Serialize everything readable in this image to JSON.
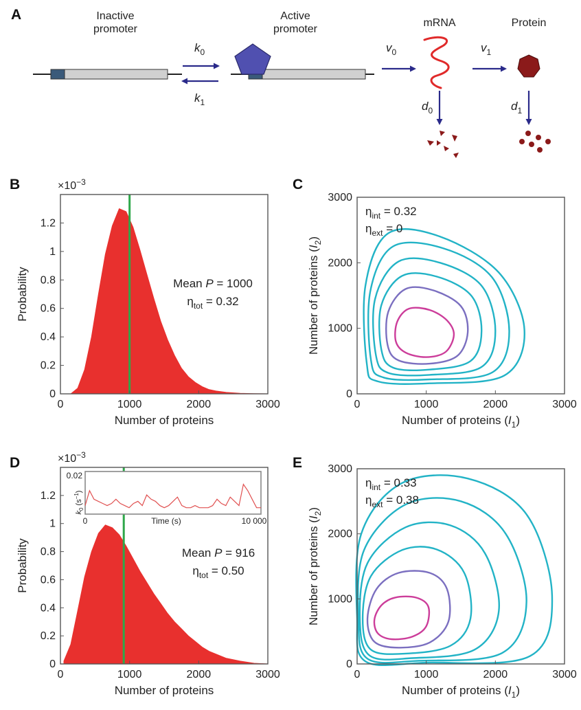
{
  "panel_letters": {
    "a": "A",
    "b": "B",
    "c": "C",
    "d": "D",
    "e": "E"
  },
  "schema": {
    "inactive_label": [
      "Inactive",
      "promoter"
    ],
    "active_label": [
      "Active",
      "promoter"
    ],
    "mrna_label": "mRNA",
    "protein_label": "Protein",
    "rates": {
      "k0": "k",
      "k0_sub": "0",
      "k1": "k",
      "k1_sub": "1",
      "v0": "v",
      "v0_sub": "0",
      "v1": "v",
      "v1_sub": "1",
      "d0": "d",
      "d0_sub": "0",
      "d1": "d",
      "d1_sub": "1"
    },
    "colors": {
      "promoter_fill": "#d0d0d0",
      "promoter_site": "#3a5a7a",
      "activator": "#5050b0",
      "mrna": "#e02a2a",
      "protein": "#8b1a1a",
      "arrow": "#2a2a8a"
    }
  },
  "chart_data": [
    {
      "panel": "B",
      "type": "area",
      "exponent_label": "×10",
      "exponent_power": "−3",
      "xlabel": "Number of proteins",
      "ylabel": "Probability",
      "xlim": [
        0,
        3000
      ],
      "ylim": [
        0,
        1.4
      ],
      "xticks": [
        0,
        1000,
        2000,
        3000
      ],
      "yticks": [
        0,
        0.2,
        0.4,
        0.6,
        0.8,
        1,
        1.2
      ],
      "ytick_labels": [
        "0",
        "0.2",
        "0.4",
        "0.6",
        "0.8",
        "1",
        "1.2"
      ],
      "x": [
        150,
        250,
        350,
        450,
        550,
        650,
        750,
        850,
        950,
        1050,
        1150,
        1250,
        1350,
        1450,
        1550,
        1650,
        1750,
        1850,
        1950,
        2050,
        2150,
        2250,
        2400,
        2600,
        2800,
        3000
      ],
      "y": [
        0.0,
        0.04,
        0.17,
        0.4,
        0.7,
        0.98,
        1.18,
        1.3,
        1.28,
        1.17,
        1.01,
        0.84,
        0.67,
        0.51,
        0.38,
        0.27,
        0.18,
        0.12,
        0.08,
        0.05,
        0.03,
        0.02,
        0.01,
        0.004,
        0.001,
        0.0
      ],
      "mean_line": 1000,
      "annotation": {
        "mean_prefix": "Mean ",
        "mean_var": "P",
        "mean_value": " = 1000",
        "eta": "η",
        "eta_sub": "tot",
        "eta_value": " = 0.32"
      },
      "fill_color": "#e8302e",
      "mean_color": "#2ea84a"
    },
    {
      "panel": "C",
      "type": "contour",
      "xlabel_prefix": "Number of proteins (",
      "xlabel_var": "I",
      "xlabel_sub": "1",
      "xlabel_suffix": ")",
      "ylabel_prefix": "Number of proteins (",
      "ylabel_var": "I",
      "ylabel_sub": "2",
      "ylabel_suffix": ")",
      "xlim": [
        0,
        3000
      ],
      "ylim": [
        0,
        3000
      ],
      "xticks": [
        0,
        1000,
        2000,
        3000
      ],
      "yticks": [
        0,
        1000,
        2000,
        3000
      ],
      "annotation": {
        "eta": "η",
        "int_sub": "int",
        "int_value": " = 0.32",
        "ext_sub": "ext",
        "ext_value": " = 0"
      },
      "contours": [
        {
          "x": [
            750,
            1050,
            1300,
            1400,
            1280,
            1000,
            700,
            560,
            580,
            750
          ],
          "y": [
            1300,
            1280,
            1120,
            900,
            640,
            560,
            630,
            800,
            1100,
            1300
          ],
          "color": "#cc3d9a"
        },
        {
          "x": [
            700,
            1100,
            1500,
            1600,
            1450,
            1050,
            600,
            440,
            450,
            700
          ],
          "y": [
            1600,
            1580,
            1340,
            940,
            580,
            460,
            510,
            750,
            1250,
            1600
          ],
          "color": "#7b6fc0"
        },
        {
          "x": [
            650,
            1150,
            1650,
            1800,
            1640,
            1050,
            520,
            350,
            350,
            650
          ],
          "y": [
            1800,
            1790,
            1500,
            960,
            500,
            370,
            400,
            680,
            1350,
            1800
          ],
          "color": "#22b3c6"
        },
        {
          "x": [
            600,
            1200,
            1800,
            2000,
            1800,
            1050,
            450,
            270,
            260,
            600
          ],
          "y": [
            2020,
            2000,
            1650,
            960,
            410,
            290,
            320,
            600,
            1450,
            2020
          ],
          "color": "#22b3c6"
        },
        {
          "x": [
            520,
            1250,
            1950,
            2200,
            1960,
            1050,
            380,
            200,
            190,
            520
          ],
          "y": [
            2250,
            2220,
            1780,
            960,
            330,
            220,
            250,
            520,
            1560,
            2250
          ],
          "color": "#22b3c6"
        },
        {
          "x": [
            450,
            1200,
            2050,
            2420,
            2130,
            1050,
            300,
            140,
            120,
            450
          ],
          "y": [
            2450,
            2400,
            1850,
            980,
            280,
            160,
            190,
            460,
            1650,
            2450
          ],
          "color": "#22b3c6"
        }
      ]
    },
    {
      "panel": "D",
      "type": "area",
      "exponent_label": "×10",
      "exponent_power": "−3",
      "xlabel": "Number of proteins",
      "ylabel": "Probability",
      "xlim": [
        0,
        3000
      ],
      "ylim": [
        0,
        1.4
      ],
      "xticks": [
        0,
        1000,
        2000,
        3000
      ],
      "yticks": [
        0,
        0.2,
        0.4,
        0.6,
        0.8,
        1,
        1.2
      ],
      "ytick_labels": [
        "0",
        "0.2",
        "0.4",
        "0.6",
        "0.8",
        "1",
        "1.2"
      ],
      "x": [
        50,
        150,
        250,
        350,
        450,
        550,
        650,
        750,
        850,
        950,
        1050,
        1150,
        1250,
        1350,
        1450,
        1550,
        1650,
        1750,
        1850,
        1950,
        2050,
        2150,
        2250,
        2400,
        2600,
        2800,
        3000
      ],
      "y": [
        0.02,
        0.14,
        0.38,
        0.62,
        0.8,
        0.93,
        0.99,
        0.97,
        0.92,
        0.84,
        0.75,
        0.66,
        0.58,
        0.5,
        0.43,
        0.36,
        0.3,
        0.25,
        0.2,
        0.16,
        0.12,
        0.09,
        0.07,
        0.04,
        0.02,
        0.005,
        0.0
      ],
      "mean_line": 916,
      "annotation": {
        "mean_prefix": "Mean ",
        "mean_var": "P",
        "mean_value": " = 916",
        "eta": "η",
        "eta_sub": "tot",
        "eta_value": " = 0.50"
      },
      "fill_color": "#e8302e",
      "mean_color": "#2ea84a",
      "inset": {
        "type": "line",
        "xlabel": "Time (s)",
        "ylabel_var": "k",
        "ylabel_sub": "0",
        "ylabel_unit_prefix": " (s",
        "ylabel_unit_power": "−1",
        "ylabel_unit_suffix": ")",
        "xlim": [
          0,
          10000
        ],
        "ylim": [
          0,
          0.02
        ],
        "xtick_labels": [
          "0",
          "10 000"
        ],
        "ytick_labels": [
          "0.02"
        ],
        "x": [
          0,
          250,
          500,
          750,
          1000,
          1250,
          1500,
          1750,
          2000,
          2250,
          2500,
          2750,
          3000,
          3250,
          3500,
          3750,
          4000,
          4250,
          4500,
          4750,
          5000,
          5250,
          5500,
          5750,
          6000,
          6250,
          6500,
          6750,
          7000,
          7250,
          7500,
          7750,
          8000,
          8250,
          8500,
          8750,
          9000,
          9250,
          9500,
          9750,
          10000
        ],
        "y": [
          0.004,
          0.011,
          0.007,
          0.006,
          0.005,
          0.004,
          0.005,
          0.007,
          0.005,
          0.004,
          0.003,
          0.005,
          0.006,
          0.004,
          0.009,
          0.007,
          0.006,
          0.004,
          0.003,
          0.004,
          0.006,
          0.008,
          0.004,
          0.003,
          0.003,
          0.004,
          0.003,
          0.003,
          0.003,
          0.004,
          0.007,
          0.005,
          0.004,
          0.008,
          0.006,
          0.004,
          0.014,
          0.011,
          0.007,
          0.003,
          0.003
        ],
        "color": "#e05050"
      }
    },
    {
      "panel": "E",
      "type": "contour",
      "xlabel_prefix": "Number of proteins (",
      "xlabel_var": "I",
      "xlabel_sub": "1",
      "xlabel_suffix": ")",
      "ylabel_prefix": "Number of proteins (",
      "ylabel_var": "I",
      "ylabel_sub": "2",
      "ylabel_suffix": ")",
      "xlim": [
        0,
        3000
      ],
      "ylim": [
        0,
        3000
      ],
      "xticks": [
        0,
        1000,
        2000,
        3000
      ],
      "yticks": [
        0,
        1000,
        2000,
        3000
      ],
      "annotation": {
        "eta": "η",
        "int_sub": "int",
        "int_value": " = 0.33",
        "ext_sub": "ext",
        "ext_value": " = 0.38"
      },
      "contours": [
        {
          "x": [
            550,
            850,
            1030,
            1000,
            800,
            500,
            300,
            250,
            350,
            550
          ],
          "y": [
            1020,
            1020,
            880,
            580,
            420,
            380,
            470,
            680,
            900,
            1020
          ],
          "color": "#cc3d9a"
        },
        {
          "x": [
            600,
            1050,
            1300,
            1320,
            1050,
            600,
            250,
            150,
            280,
            600
          ],
          "y": [
            1400,
            1400,
            1150,
            650,
            330,
            250,
            340,
            700,
            1150,
            1400
          ],
          "color": "#7b6fc0"
        },
        {
          "x": [
            650,
            1150,
            1550,
            1640,
            1350,
            700,
            200,
            80,
            200,
            650
          ],
          "y": [
            1750,
            1760,
            1400,
            700,
            280,
            160,
            220,
            700,
            1350,
            1750
          ],
          "color": "#22b3c6"
        },
        {
          "x": [
            700,
            1350,
            1850,
            2050,
            1700,
            800,
            180,
            40,
            150,
            700
          ],
          "y": [
            2100,
            2130,
            1700,
            820,
            220,
            90,
            130,
            700,
            1550,
            2100
          ],
          "color": "#22b3c6"
        },
        {
          "x": [
            700,
            1500,
            2150,
            2450,
            2100,
            900,
            150,
            20,
            100,
            700
          ],
          "y": [
            2450,
            2500,
            2000,
            950,
            170,
            50,
            80,
            700,
            1750,
            2450
          ],
          "color": "#22b3c6"
        },
        {
          "x": [
            650,
            1600,
            2450,
            2820,
            2500,
            1000,
            120,
            0,
            60,
            650
          ],
          "y": [
            2780,
            2850,
            2300,
            1050,
            120,
            20,
            40,
            700,
            2000,
            2780
          ],
          "color": "#22b3c6"
        }
      ]
    }
  ]
}
